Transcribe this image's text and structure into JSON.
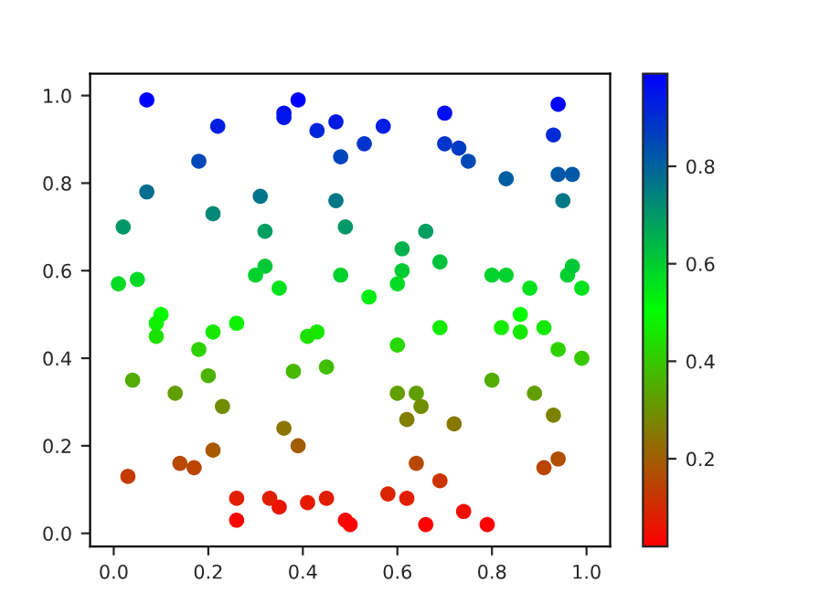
{
  "chart_data": {
    "type": "scatter",
    "marker": "circle",
    "x": [
      0.07,
      0.22,
      0.39,
      0.36,
      0.36,
      0.47,
      0.43,
      0.48,
      0.18,
      0.07,
      0.31,
      0.47,
      0.21,
      0.02,
      0.32,
      0.32,
      0.3,
      0.01,
      0.05,
      0.35,
      0.48,
      0.1,
      0.09,
      0.26,
      0.09,
      0.21,
      0.43,
      0.41,
      0.18,
      0.04,
      0.2,
      0.38,
      0.45,
      0.13,
      0.23,
      0.36,
      0.21,
      0.39,
      0.03,
      0.14,
      0.17,
      0.26,
      0.33,
      0.35,
      0.41,
      0.45,
      0.26,
      0.49,
      0.5,
      0.57,
      0.7,
      0.94,
      0.93,
      0.53,
      0.7,
      0.73,
      0.75,
      0.83,
      0.94,
      0.97,
      0.95,
      0.49,
      0.66,
      0.61,
      0.69,
      0.61,
      0.6,
      0.8,
      0.83,
      0.88,
      0.96,
      0.97,
      0.99,
      0.54,
      0.69,
      0.6,
      0.82,
      0.86,
      0.86,
      0.91,
      0.94,
      0.99,
      0.8,
      0.6,
      0.64,
      0.65,
      0.62,
      0.72,
      0.89,
      0.93,
      0.64,
      0.69,
      0.91,
      0.94,
      0.58,
      0.62,
      0.74,
      0.66,
      0.79
    ],
    "values": [
      0.99,
      0.93,
      0.99,
      0.96,
      0.95,
      0.94,
      0.92,
      0.86,
      0.85,
      0.78,
      0.77,
      0.76,
      0.73,
      0.7,
      0.69,
      0.61,
      0.59,
      0.57,
      0.58,
      0.56,
      0.59,
      0.5,
      0.48,
      0.48,
      0.45,
      0.46,
      0.46,
      0.45,
      0.42,
      0.35,
      0.36,
      0.37,
      0.38,
      0.32,
      0.29,
      0.24,
      0.19,
      0.2,
      0.13,
      0.16,
      0.15,
      0.08,
      0.08,
      0.06,
      0.07,
      0.08,
      0.03,
      0.03,
      0.02,
      0.93,
      0.96,
      0.98,
      0.91,
      0.89,
      0.89,
      0.88,
      0.85,
      0.81,
      0.82,
      0.82,
      0.76,
      0.7,
      0.69,
      0.65,
      0.62,
      0.6,
      0.57,
      0.59,
      0.59,
      0.56,
      0.59,
      0.61,
      0.56,
      0.54,
      0.47,
      0.43,
      0.47,
      0.5,
      0.46,
      0.47,
      0.42,
      0.4,
      0.35,
      0.32,
      0.32,
      0.29,
      0.26,
      0.25,
      0.32,
      0.27,
      0.16,
      0.12,
      0.15,
      0.17,
      0.09,
      0.08,
      0.05,
      0.02,
      0.02
    ],
    "cvalues": [
      0.99,
      0.93,
      0.99,
      0.96,
      0.95,
      0.94,
      0.92,
      0.86,
      0.85,
      0.78,
      0.77,
      0.76,
      0.73,
      0.7,
      0.69,
      0.61,
      0.59,
      0.57,
      0.58,
      0.56,
      0.59,
      0.5,
      0.48,
      0.48,
      0.45,
      0.46,
      0.46,
      0.45,
      0.42,
      0.35,
      0.36,
      0.37,
      0.38,
      0.32,
      0.29,
      0.24,
      0.19,
      0.2,
      0.13,
      0.16,
      0.15,
      0.08,
      0.08,
      0.06,
      0.07,
      0.08,
      0.03,
      0.03,
      0.02,
      0.93,
      0.96,
      0.98,
      0.91,
      0.89,
      0.89,
      0.88,
      0.85,
      0.81,
      0.82,
      0.82,
      0.76,
      0.7,
      0.69,
      0.65,
      0.62,
      0.6,
      0.57,
      0.59,
      0.59,
      0.56,
      0.59,
      0.61,
      0.56,
      0.54,
      0.47,
      0.43,
      0.47,
      0.5,
      0.46,
      0.47,
      0.42,
      0.4,
      0.35,
      0.32,
      0.32,
      0.29,
      0.26,
      0.25,
      0.32,
      0.27,
      0.16,
      0.12,
      0.15,
      0.17,
      0.09,
      0.08,
      0.05,
      0.02,
      0.02
    ],
    "clim": [
      0.02,
      0.99
    ],
    "cticks": [
      0.2,
      0.4,
      0.6,
      0.8
    ],
    "xlim": [
      -0.05,
      1.05
    ],
    "ylim": [
      -0.03,
      1.05
    ],
    "xticks": [
      {
        "value": 0,
        "label": "0.0"
      },
      0.2,
      0.4,
      0.6,
      0.8,
      {
        "value": 1,
        "label": "1.0"
      }
    ],
    "yticks": [
      {
        "value": 0,
        "label": "0.0"
      },
      0.2,
      0.4,
      0.6,
      0.8,
      {
        "value": 1,
        "label": "1.0"
      }
    ]
  }
}
